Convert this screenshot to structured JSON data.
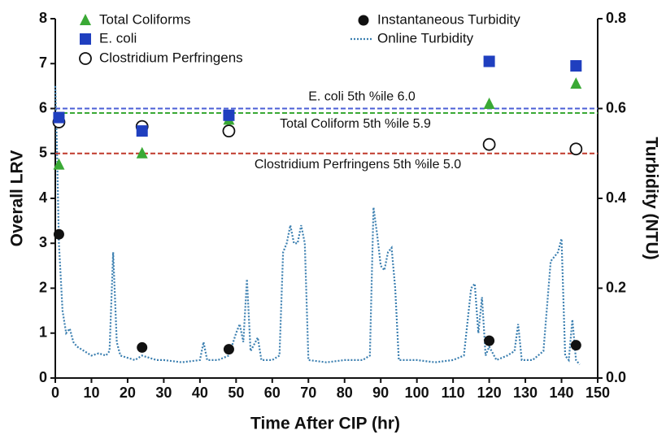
{
  "chart_data": {
    "type": "scatter",
    "x_label": "Time After CIP (hr)",
    "y_label": "Overall LRV",
    "y2_label": "Turbidity (NTU)",
    "xlim": [
      0,
      150
    ],
    "xticks": [
      0,
      10,
      20,
      30,
      40,
      50,
      60,
      70,
      80,
      90,
      100,
      110,
      120,
      130,
      140,
      150
    ],
    "ylim": [
      0,
      8
    ],
    "yticks": [
      0,
      1,
      2,
      3,
      4,
      5,
      6,
      7,
      8
    ],
    "y2lim": [
      0,
      0.8
    ],
    "y2ticks": [
      {
        "value": 0,
        "label": "0.0"
      },
      0.2,
      0.4,
      0.6,
      0.8
    ],
    "reference_lines": [
      {
        "value": 6.0,
        "label": "E. coli 5th %ile 6.0",
        "color": "#4b5fd6"
      },
      {
        "value": 5.9,
        "label": "Total Coliform 5th %ile 5.9",
        "color": "#3aa935"
      },
      {
        "value": 5.0,
        "label": "Clostridium Perfringens 5th %ile 5.0",
        "color": "#c0392b"
      }
    ],
    "series": [
      {
        "name": "Total Coliforms",
        "color": "#3aa935",
        "marker": "triangle",
        "x": [
          1,
          24,
          48,
          120,
          144
        ],
        "values": [
          4.75,
          5.0,
          5.75,
          6.1,
          6.55
        ]
      },
      {
        "name": "E. coli",
        "color": "#1f3fbf",
        "marker": "square",
        "x": [
          1,
          24,
          48,
          120,
          144
        ],
        "values": [
          5.8,
          5.5,
          5.85,
          7.05,
          6.95
        ]
      },
      {
        "name": "Clostridium Perfringens",
        "color": "#111111",
        "marker": "circle-open",
        "x": [
          1,
          24,
          48,
          120,
          144
        ],
        "values": [
          5.7,
          5.6,
          5.5,
          5.2,
          5.1
        ]
      },
      {
        "name": "Instantaneous Turbidity",
        "color": "#111111",
        "marker": "circle",
        "axis": "y2",
        "x": [
          1,
          24,
          48,
          120,
          144
        ],
        "values": [
          0.32,
          0.068,
          0.064,
          0.083,
          0.073
        ]
      },
      {
        "name": "Online Turbidity",
        "color": "#3b7fb0",
        "marker": "line-dotted",
        "axis": "y2",
        "x": [
          0,
          0.5,
          1,
          2,
          3,
          4,
          5,
          6,
          8,
          10,
          12,
          14,
          15,
          16,
          17,
          18,
          20,
          22,
          24,
          26,
          28,
          30,
          35,
          40,
          41,
          42,
          45,
          48,
          50,
          51,
          52,
          53,
          54,
          56,
          57,
          60,
          62,
          63,
          64,
          65,
          66,
          67,
          68,
          69,
          70,
          75,
          80,
          85,
          87,
          88,
          89,
          90,
          91,
          92,
          93,
          94,
          95,
          100,
          105,
          110,
          113,
          115,
          116,
          117,
          118,
          119,
          120,
          122,
          125,
          127,
          128,
          129,
          132,
          135,
          137,
          139,
          140,
          141,
          142,
          143,
          144,
          145
        ],
        "values": [
          0.65,
          0.5,
          0.3,
          0.15,
          0.1,
          0.11,
          0.08,
          0.07,
          0.06,
          0.05,
          0.055,
          0.05,
          0.06,
          0.28,
          0.08,
          0.05,
          0.045,
          0.04,
          0.05,
          0.045,
          0.04,
          0.04,
          0.035,
          0.04,
          0.08,
          0.04,
          0.04,
          0.05,
          0.1,
          0.12,
          0.08,
          0.22,
          0.06,
          0.09,
          0.04,
          0.04,
          0.05,
          0.28,
          0.3,
          0.34,
          0.3,
          0.3,
          0.34,
          0.3,
          0.04,
          0.035,
          0.04,
          0.04,
          0.05,
          0.38,
          0.32,
          0.25,
          0.24,
          0.28,
          0.29,
          0.2,
          0.04,
          0.04,
          0.035,
          0.04,
          0.05,
          0.2,
          0.21,
          0.1,
          0.18,
          0.05,
          0.07,
          0.04,
          0.05,
          0.06,
          0.12,
          0.04,
          0.04,
          0.06,
          0.26,
          0.28,
          0.31,
          0.05,
          0.04,
          0.13,
          0.04,
          0.03
        ]
      }
    ]
  }
}
